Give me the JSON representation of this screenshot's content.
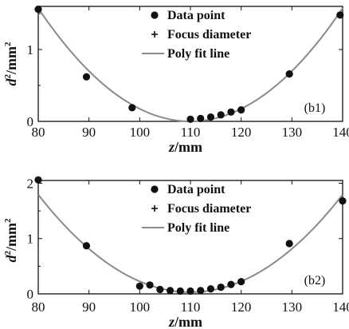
{
  "chart_data": [
    {
      "type": "scatter",
      "panel_label": "(b1)",
      "xlabel": "z/mm",
      "ylabel_main": "d",
      "ylabel_unit": "/mm",
      "xlim": [
        80,
        140
      ],
      "ylim": [
        0,
        1.6
      ],
      "xticks": [
        "80",
        "90",
        "100",
        "110",
        "120",
        "130",
        "140"
      ],
      "yticks": [
        "0",
        "1"
      ],
      "legend": [
        "Data point",
        "Focus diameter",
        "Poly fit line"
      ],
      "legend_position": "top-center",
      "points": {
        "x": [
          80,
          89.5,
          98.5,
          110,
          112,
          114,
          116,
          118,
          120,
          129.5,
          139.5
        ],
        "y": [
          1.56,
          0.62,
          0.19,
          0.03,
          0.04,
          0.06,
          0.09,
          0.13,
          0.16,
          0.66,
          1.48
        ]
      },
      "fit_curve": {
        "model": "quadratic",
        "x": [
          80,
          140
        ],
        "vertex": [
          110,
          0.0
        ],
        "a": 0.00175
      },
      "colors": {
        "points": "#111111",
        "fit": "#8a8a8a"
      }
    },
    {
      "type": "scatter",
      "panel_label": "(b2)",
      "xlabel": "z/mm",
      "ylabel_main": "d",
      "ylabel_unit": "/mm",
      "xlim": [
        80,
        140
      ],
      "ylim": [
        0,
        2.05
      ],
      "xticks": [
        "80",
        "90",
        "100",
        "110",
        "120",
        "130",
        "140"
      ],
      "yticks": [
        "0",
        "1",
        "2"
      ],
      "legend": [
        "Data point",
        "Focus diameter",
        "Poly fit line"
      ],
      "legend_position": "top-center",
      "points": {
        "x": [
          80,
          89.5,
          100,
          102,
          104,
          106,
          108,
          110,
          112,
          114,
          116,
          118,
          120,
          129.5,
          140
        ],
        "y": [
          2.06,
          0.87,
          0.14,
          0.16,
          0.08,
          0.06,
          0.05,
          0.05,
          0.06,
          0.09,
          0.12,
          0.17,
          0.22,
          0.91,
          1.68
        ]
      },
      "fit_curve": {
        "model": "quadratic",
        "x": [
          80,
          140
        ],
        "vertex": [
          110,
          0.03
        ],
        "a": 0.00196
      },
      "colors": {
        "points": "#111111",
        "fit": "#8a8a8a"
      }
    }
  ]
}
